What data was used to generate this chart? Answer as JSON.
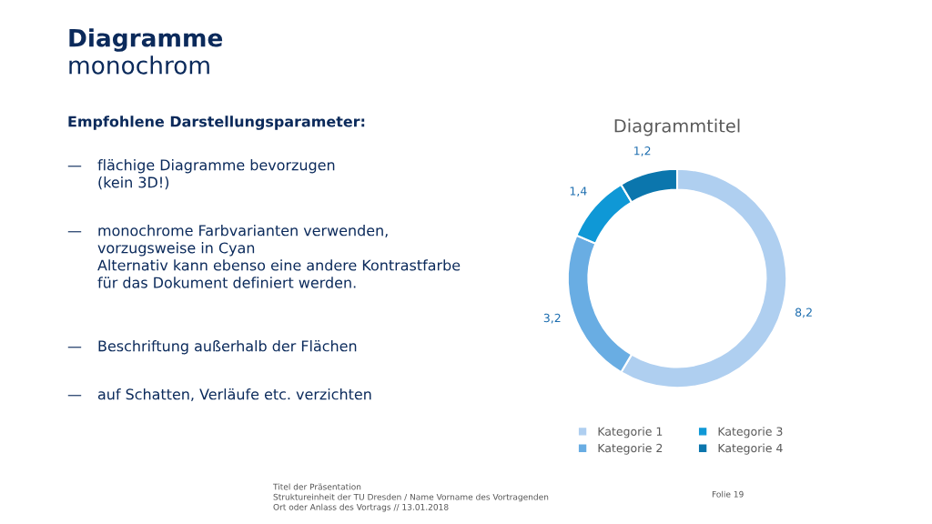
{
  "chart_data": [
    {
      "type": "other",
      "title": "Diagramme",
      "subtitle": "monochrom",
      "annotations": [
        "Empfohlene Darstellungsparameter:",
        "— flächige Diagramme bevorzugen\n(kein 3D!)",
        "— monochrome Farbvarianten verwenden,\nvorzugsweise in Cyan\nAlternativ kann ebenso eine andere Kontrastfarbe\nfür das Dokument definiert werden.",
        "— Beschriftung außerhalb der Flächen",
        "— auf Schatten, Verläufe etc. verzichten",
        "Titel der Präsentation\nStruktureinheit der TU Dresden / Name Vorname des Vortragenden\nOrt oder Anlass des Vortrags // 13.01.2018",
        "Folie 19"
      ]
    },
    {
      "type": "donut",
      "title": "Diagrammtitel",
      "categories": [
        "Kategorie 1",
        "Kategorie 2",
        "Kategorie 3",
        "Kategorie 4"
      ],
      "values": [
        8.2,
        3.2,
        1.4,
        1.2
      ],
      "colors": [
        "#afcff0",
        "#69ade3",
        "#0f98d6",
        "#0b76ad"
      ],
      "value_labels": [
        "8,2",
        "3,2",
        "1,4",
        "1,2"
      ],
      "legend": "bottom"
    }
  ]
}
